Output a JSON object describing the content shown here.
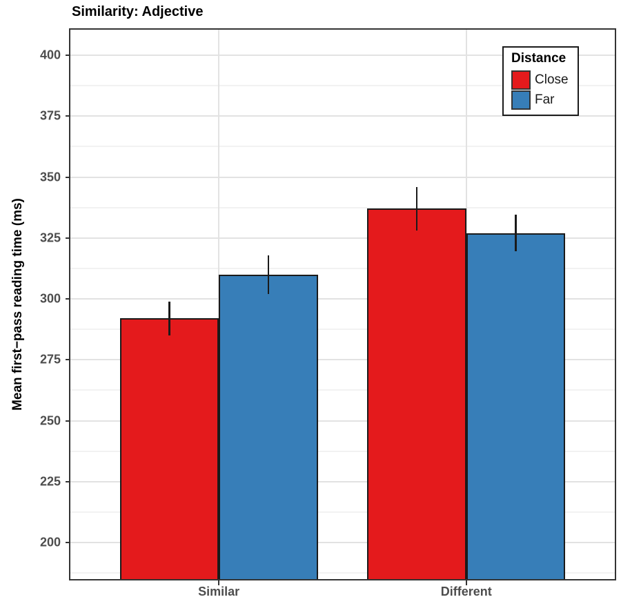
{
  "chart_data": {
    "type": "bar",
    "title": "Similarity: Adjective",
    "categories": [
      "Similar",
      "Different"
    ],
    "series": [
      {
        "name": "Close",
        "color": "#E41A1C",
        "values": [
          292,
          337
        ],
        "error_margins": [
          7,
          9
        ]
      },
      {
        "name": "Far",
        "color": "#377EB8",
        "values": [
          310,
          327
        ],
        "error_margins": [
          8,
          7.5
        ]
      }
    ],
    "xlabel": "",
    "ylabel": "Mean first−pass reading time (ms)",
    "ylim": [
      185,
      410.5
    ],
    "yticks": [
      200,
      225,
      250,
      275,
      300,
      325,
      350,
      375,
      400
    ],
    "y_minor_step": 12.5,
    "grid": "horizontal major+minor gridlines, vertical major gridline at each category",
    "error_bars": "plain vertical lines, no caps",
    "legend": {
      "title": "Distance",
      "position": "top-right inside panel",
      "items": [
        "Close",
        "Far"
      ]
    },
    "colors": {
      "bar_close": "#E41A1C",
      "bar_far": "#377EB8",
      "bar_outline": "#1A1A1A",
      "errorbar": "#1A1A1A",
      "axis_text": "#4D4D4D",
      "title_text": "#000000",
      "panel_border": "#333333",
      "grid_major": "#E2E2E2",
      "grid_minor": "#F2F2F2",
      "background": "#FFFFFF"
    }
  }
}
